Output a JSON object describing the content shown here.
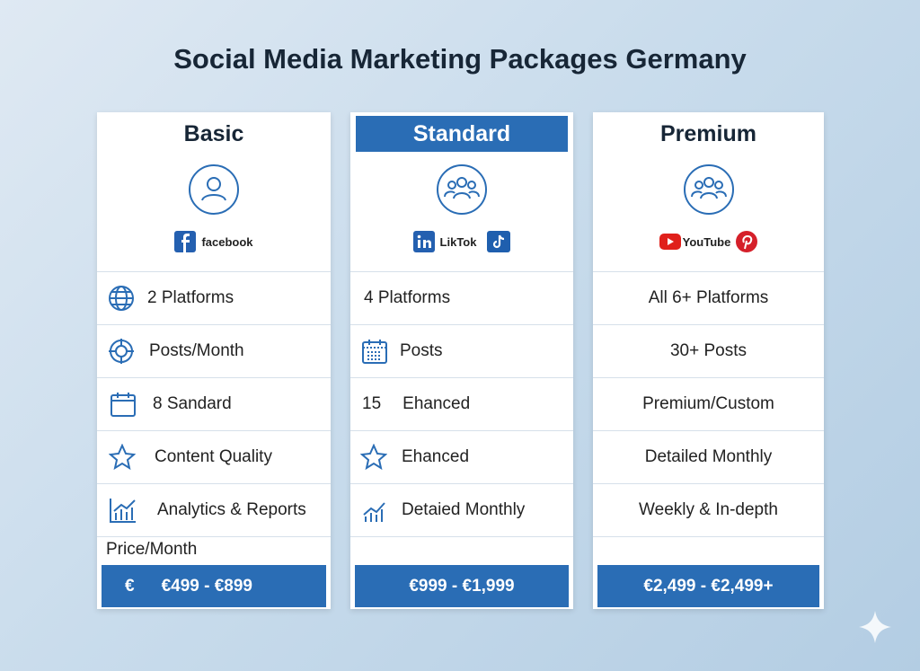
{
  "title": "Social Media Marketing Packages Germany",
  "packages": [
    {
      "name": "Basic",
      "platforms": [
        "facebook"
      ],
      "features": [
        "2 Platforms",
        "Posts/Month",
        "8 Sandard",
        "Content Quality",
        "Analytics & Reports"
      ],
      "price_label": "Price/Month",
      "currency": "€",
      "price": "€499 - €899"
    },
    {
      "name": "Standard",
      "platforms": [
        "LikTok"
      ],
      "features": [
        "4 Platforms",
        "Posts",
        [
          "15",
          "Ehanced"
        ],
        "Ehanced",
        "Detaied Monthly"
      ],
      "price": "€999 - €1,999"
    },
    {
      "name": "Premium",
      "platforms": [
        "YouTube"
      ],
      "features": [
        "All 6+ Platforms",
        "30+ Posts",
        "Premium/Custom",
        "Detailed Monthly",
        "Weekly & In-depth"
      ],
      "price": "€2,499 - €2,499+"
    }
  ]
}
